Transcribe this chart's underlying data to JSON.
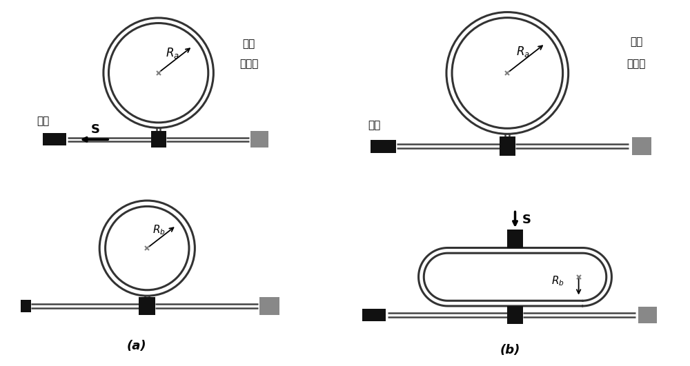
{
  "bg_color": "#ffffff",
  "dark_color": "#111111",
  "gray_color": "#888888",
  "fiber_color": "#444444",
  "ring_color": "#333333",
  "label_a": "(a)",
  "label_b": "(b)",
  "text_guangyuan": "光源",
  "text_guangdian_line1": "光电",
  "text_guangdian_line2": "探测器",
  "text_Ra": "R",
  "text_Ra_sub": "a",
  "text_Rb": "R",
  "text_Rb_sub": "b",
  "text_S": "S"
}
